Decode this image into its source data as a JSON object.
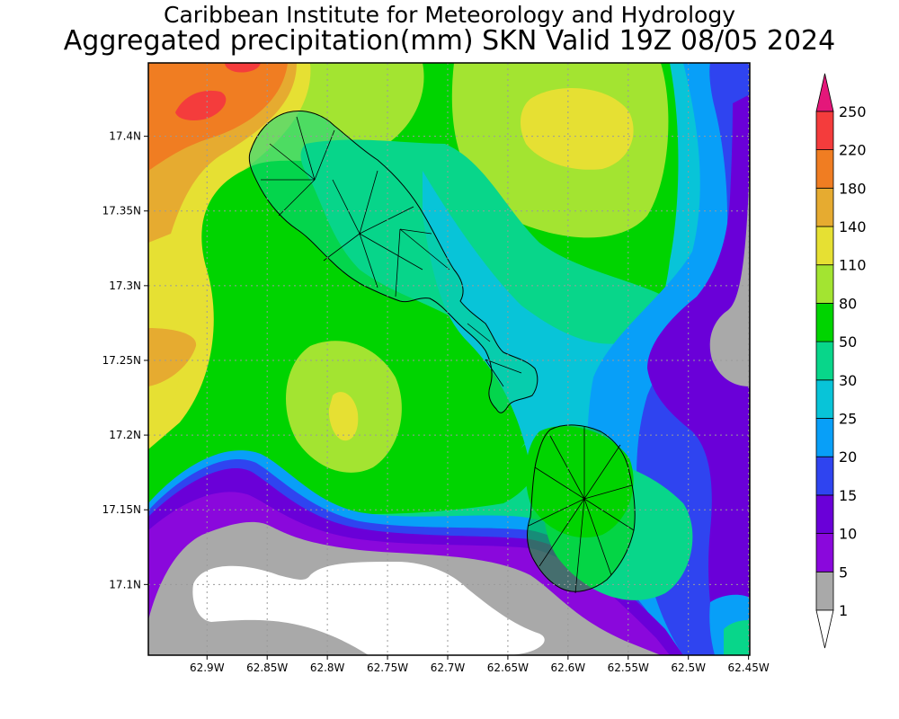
{
  "title_line1": "Caribbean Institute for Meteorology and Hydrology",
  "title_line2": "Aggregated precipitation(mm) SKN Valid 19Z 08/05 2024",
  "lat_ticks": [
    {
      "label": "17.4N",
      "lat": 17.4
    },
    {
      "label": "17.35N",
      "lat": 17.35
    },
    {
      "label": "17.3N",
      "lat": 17.3
    },
    {
      "label": "17.25N",
      "lat": 17.25
    },
    {
      "label": "17.2N",
      "lat": 17.2
    },
    {
      "label": "17.15N",
      "lat": 17.15
    },
    {
      "label": "17.1N",
      "lat": 17.1
    }
  ],
  "lon_ticks": [
    {
      "label": "62.9W",
      "lon": -62.9
    },
    {
      "label": "62.85W",
      "lon": -62.85
    },
    {
      "label": "62.8W",
      "lon": -62.8
    },
    {
      "label": "62.75W",
      "lon": -62.75
    },
    {
      "label": "62.7W",
      "lon": -62.7
    },
    {
      "label": "62.65W",
      "lon": -62.65
    },
    {
      "label": "62.6W",
      "lon": -62.6
    },
    {
      "label": "62.55W",
      "lon": -62.55
    },
    {
      "label": "62.5W",
      "lon": -62.5
    },
    {
      "label": "62.45W",
      "lon": -62.45
    }
  ],
  "colorbar": {
    "levels": [
      "1",
      "5",
      "10",
      "15",
      "20",
      "25",
      "30",
      "50",
      "80",
      "110",
      "140",
      "180",
      "220",
      "250"
    ],
    "colors": [
      "#a9a9a9",
      "#8a08dc",
      "#6a00d8",
      "#2f44f0",
      "#089ff8",
      "#08c4d8",
      "#08d68a",
      "#00d400",
      "#a3e431",
      "#e6e033",
      "#e6ab30",
      "#f07d22",
      "#f43c3c",
      "#e4177a"
    ],
    "below_color": "#ffffff"
  },
  "colors": {
    "grid": "#9a9a9a",
    "coast": "#000000",
    "under_1": "#ffffff"
  }
}
